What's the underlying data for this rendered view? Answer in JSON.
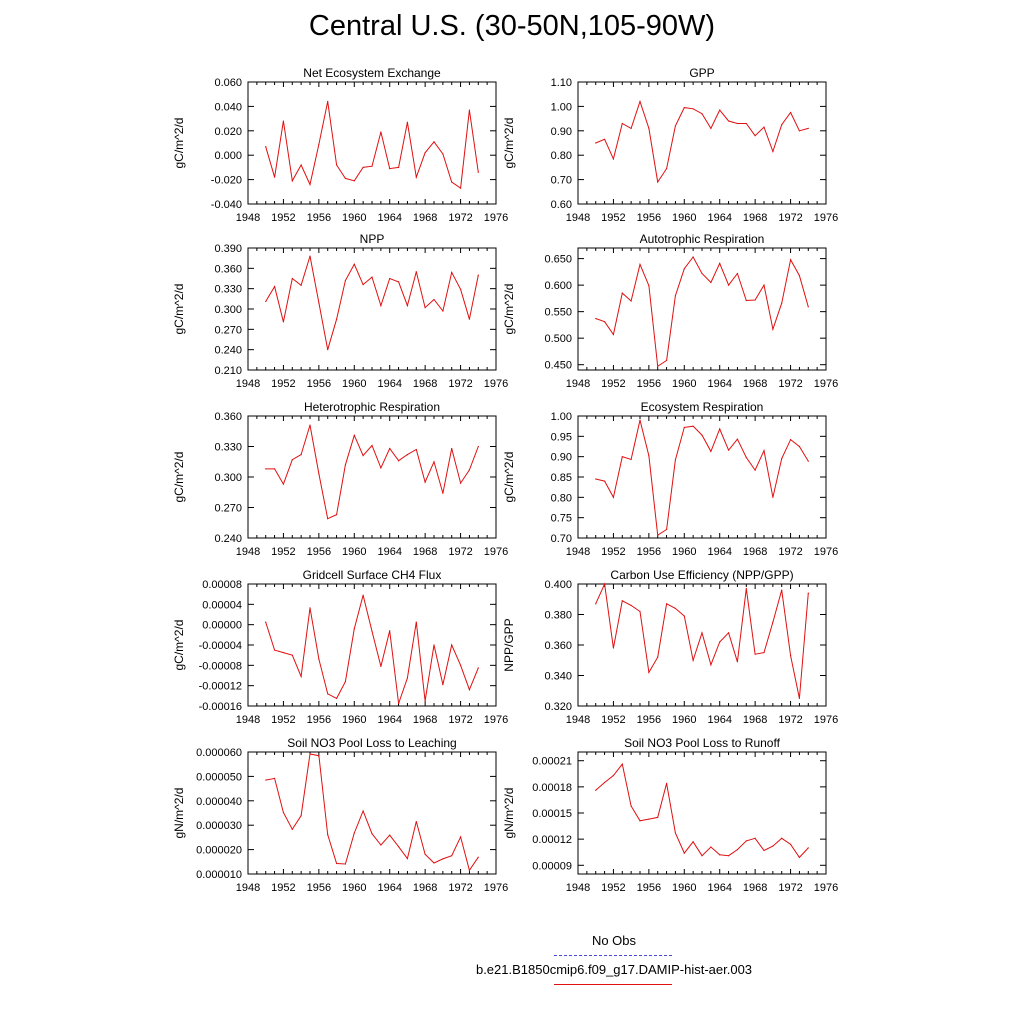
{
  "title": "Central U.S. (30-50N,105-90W)",
  "legend": {
    "obs_label": "No Obs",
    "obs_color": "#4a4ad8",
    "model_label": "b.e21.B1850cmip6.f09_g17.DAMIP-hist-aer.003",
    "model_color": "#e01010"
  },
  "chart_data": [
    {
      "type": "line",
      "title": "Net Ecosystem Exchange",
      "ylabel": "gC/m^2/d",
      "xlim": [
        1948,
        1976
      ],
      "xticks": [
        "1948",
        "1952",
        "1956",
        "1960",
        "1964",
        "1968",
        "1972",
        "1976"
      ],
      "ylim": [
        -0.04,
        0.06
      ],
      "yticks": [
        "-0.040",
        "-0.020",
        "0.000",
        "0.020",
        "0.040",
        "0.060"
      ],
      "x": [
        1950,
        1951,
        1952,
        1953,
        1954,
        1955,
        1956,
        1957,
        1958,
        1959,
        1960,
        1961,
        1962,
        1963,
        1964,
        1965,
        1966,
        1967,
        1968,
        1969,
        1970,
        1971,
        1972,
        1973,
        1974
      ],
      "values": [
        0.007,
        -0.018,
        0.028,
        -0.021,
        -0.008,
        -0.024,
        0.009,
        0.044,
        -0.008,
        -0.019,
        -0.021,
        -0.01,
        -0.009,
        0.019,
        -0.011,
        -0.01,
        0.027,
        -0.018,
        0.002,
        0.011,
        0.001,
        -0.022,
        -0.027,
        0.037,
        -0.014
      ]
    },
    {
      "type": "line",
      "title": "GPP",
      "ylabel": "gC/m^2/d",
      "xlim": [
        1948,
        1976
      ],
      "xticks": [
        "1948",
        "1952",
        "1956",
        "1960",
        "1964",
        "1968",
        "1972",
        "1976"
      ],
      "ylim": [
        0.6,
        1.1
      ],
      "yticks": [
        "0.60",
        "0.70",
        "0.80",
        "0.90",
        "1.00",
        "1.10"
      ],
      "x": [
        1950,
        1951,
        1952,
        1953,
        1954,
        1955,
        1956,
        1957,
        1958,
        1959,
        1960,
        1961,
        1962,
        1963,
        1964,
        1965,
        1966,
        1967,
        1968,
        1969,
        1970,
        1971,
        1972,
        1973,
        1974
      ],
      "values": [
        0.85,
        0.865,
        0.785,
        0.93,
        0.91,
        1.02,
        0.91,
        0.69,
        0.745,
        0.92,
        0.995,
        0.99,
        0.97,
        0.91,
        0.985,
        0.94,
        0.93,
        0.93,
        0.88,
        0.915,
        0.815,
        0.925,
        0.975,
        0.9,
        0.91
      ]
    },
    {
      "type": "line",
      "title": "NPP",
      "ylabel": "gC/m^2/d",
      "xlim": [
        1948,
        1976
      ],
      "xticks": [
        "1948",
        "1952",
        "1956",
        "1960",
        "1964",
        "1968",
        "1972",
        "1976"
      ],
      "ylim": [
        0.21,
        0.39
      ],
      "yticks": [
        "0.210",
        "0.240",
        "0.270",
        "0.300",
        "0.330",
        "0.360",
        "0.390"
      ],
      "x": [
        1950,
        1951,
        1952,
        1953,
        1954,
        1955,
        1956,
        1957,
        1958,
        1959,
        1960,
        1961,
        1962,
        1963,
        1964,
        1965,
        1966,
        1967,
        1968,
        1969,
        1970,
        1971,
        1972,
        1973,
        1974
      ],
      "values": [
        0.311,
        0.333,
        0.281,
        0.345,
        0.335,
        0.378,
        0.309,
        0.24,
        0.285,
        0.342,
        0.366,
        0.336,
        0.347,
        0.305,
        0.345,
        0.34,
        0.305,
        0.355,
        0.302,
        0.314,
        0.297,
        0.354,
        0.329,
        0.285,
        0.35
      ]
    },
    {
      "type": "line",
      "title": "Autotrophic Respiration",
      "ylabel": "gC/m^2/d",
      "xlim": [
        1948,
        1976
      ],
      "xticks": [
        "1948",
        "1952",
        "1956",
        "1960",
        "1964",
        "1968",
        "1972",
        "1976"
      ],
      "ylim": [
        0.44,
        0.67
      ],
      "yticks": [
        "0.450",
        "0.500",
        "0.550",
        "0.600",
        "0.650"
      ],
      "x": [
        1950,
        1951,
        1952,
        1953,
        1954,
        1955,
        1956,
        1957,
        1958,
        1959,
        1960,
        1961,
        1962,
        1963,
        1964,
        1965,
        1966,
        1967,
        1968,
        1969,
        1970,
        1971,
        1972,
        1973,
        1974
      ],
      "values": [
        0.537,
        0.531,
        0.507,
        0.585,
        0.57,
        0.639,
        0.599,
        0.447,
        0.458,
        0.58,
        0.631,
        0.653,
        0.622,
        0.605,
        0.641,
        0.6,
        0.622,
        0.571,
        0.572,
        0.6,
        0.517,
        0.566,
        0.648,
        0.618,
        0.559
      ]
    },
    {
      "type": "line",
      "title": "Heterotrophic Respiration",
      "ylabel": "gC/m^2/d",
      "xlim": [
        1948,
        1976
      ],
      "xticks": [
        "1948",
        "1952",
        "1956",
        "1960",
        "1964",
        "1968",
        "1972",
        "1976"
      ],
      "ylim": [
        0.24,
        0.36
      ],
      "yticks": [
        "0.240",
        "0.270",
        "0.300",
        "0.330",
        "0.360"
      ],
      "x": [
        1950,
        1951,
        1952,
        1953,
        1954,
        1955,
        1956,
        1957,
        1958,
        1959,
        1960,
        1961,
        1962,
        1963,
        1964,
        1965,
        1966,
        1967,
        1968,
        1969,
        1970,
        1971,
        1972,
        1973,
        1974
      ],
      "values": [
        0.308,
        0.308,
        0.293,
        0.317,
        0.322,
        0.351,
        0.303,
        0.259,
        0.263,
        0.312,
        0.341,
        0.321,
        0.331,
        0.309,
        0.328,
        0.316,
        0.322,
        0.327,
        0.295,
        0.315,
        0.284,
        0.328,
        0.294,
        0.307,
        0.33
      ]
    },
    {
      "type": "line",
      "title": "Ecosystem Respiration",
      "ylabel": "gC/m^2/d",
      "xlim": [
        1948,
        1976
      ],
      "xticks": [
        "1948",
        "1952",
        "1956",
        "1960",
        "1964",
        "1968",
        "1972",
        "1976"
      ],
      "ylim": [
        0.7,
        1.0
      ],
      "yticks": [
        "0.70",
        "0.75",
        "0.80",
        "0.85",
        "0.90",
        "0.95",
        "1.00"
      ],
      "x": [
        1950,
        1951,
        1952,
        1953,
        1954,
        1955,
        1956,
        1957,
        1958,
        1959,
        1960,
        1961,
        1962,
        1963,
        1964,
        1965,
        1966,
        1967,
        1968,
        1969,
        1970,
        1971,
        1972,
        1973,
        1974
      ],
      "values": [
        0.845,
        0.84,
        0.8,
        0.9,
        0.893,
        0.99,
        0.902,
        0.707,
        0.721,
        0.892,
        0.972,
        0.975,
        0.953,
        0.913,
        0.968,
        0.916,
        0.943,
        0.898,
        0.867,
        0.915,
        0.8,
        0.895,
        0.942,
        0.925,
        0.889
      ]
    },
    {
      "type": "line",
      "title": "Gridcell Surface CH4 Flux",
      "ylabel": "gC/m^2/d",
      "xlim": [
        1948,
        1976
      ],
      "xticks": [
        "1948",
        "1952",
        "1956",
        "1960",
        "1964",
        "1968",
        "1972",
        "1976"
      ],
      "ylim": [
        -0.00016,
        8e-05
      ],
      "yticks": [
        "-0.00016",
        "-0.00012",
        "-0.00008",
        "-0.00004",
        "0.00000",
        "0.00004",
        "0.00008"
      ],
      "x": [
        1950,
        1951,
        1952,
        1953,
        1954,
        1955,
        1956,
        1957,
        1958,
        1959,
        1960,
        1961,
        1962,
        1963,
        1964,
        1965,
        1966,
        1967,
        1968,
        1969,
        1970,
        1971,
        1972,
        1973,
        1974
      ],
      "values": [
        5e-06,
        -5e-05,
        -5.5e-05,
        -6e-05,
        -0.000102,
        3.3e-05,
        -6.8e-05,
        -0.000136,
        -0.000145,
        -0.000112,
        -8e-06,
        5.8e-05,
        -1.3e-05,
        -8.2e-05,
        -1.2e-05,
        -0.000155,
        -0.000105,
        5e-06,
        -0.00015,
        -4e-05,
        -0.000118,
        -4e-05,
        -8e-05,
        -0.000128,
        -8.5e-05
      ]
    },
    {
      "type": "line",
      "title": "Carbon Use Efficiency (NPP/GPP)",
      "ylabel": "NPP/GPP",
      "xlim": [
        1948,
        1976
      ],
      "xticks": [
        "1948",
        "1952",
        "1956",
        "1960",
        "1964",
        "1968",
        "1972",
        "1976"
      ],
      "ylim": [
        0.32,
        0.4
      ],
      "yticks": [
        "0.320",
        "0.340",
        "0.360",
        "0.380",
        "0.400"
      ],
      "x": [
        1950,
        1951,
        1952,
        1953,
        1954,
        1955,
        1956,
        1957,
        1958,
        1959,
        1960,
        1961,
        1962,
        1963,
        1964,
        1965,
        1966,
        1967,
        1968,
        1969,
        1970,
        1971,
        1972,
        1973,
        1974
      ],
      "values": [
        0.387,
        0.4,
        0.358,
        0.389,
        0.386,
        0.382,
        0.342,
        0.352,
        0.387,
        0.384,
        0.379,
        0.35,
        0.368,
        0.347,
        0.362,
        0.368,
        0.349,
        0.397,
        0.354,
        0.355,
        0.375,
        0.396,
        0.353,
        0.325,
        0.394
      ]
    },
    {
      "type": "line",
      "title": "Soil NO3 Pool Loss to Leaching",
      "ylabel": "gN/m^2/d",
      "xlim": [
        1948,
        1976
      ],
      "xticks": [
        "1948",
        "1952",
        "1956",
        "1960",
        "1964",
        "1968",
        "1972",
        "1976"
      ],
      "ylim": [
        1e-05,
        6e-05
      ],
      "yticks": [
        "0.000010",
        "0.000020",
        "0.000030",
        "0.000040",
        "0.000050",
        "0.000060"
      ],
      "x": [
        1950,
        1951,
        1952,
        1953,
        1954,
        1955,
        1956,
        1957,
        1958,
        1959,
        1960,
        1961,
        1962,
        1963,
        1964,
        1965,
        1966,
        1967,
        1968,
        1969,
        1970,
        1971,
        1972,
        1973,
        1974
      ],
      "values": [
        4.85e-05,
        4.92e-05,
        3.52e-05,
        2.83e-05,
        3.39e-05,
        5.92e-05,
        5.85e-05,
        2.61e-05,
        1.43e-05,
        1.41e-05,
        2.68e-05,
        3.58e-05,
        2.65e-05,
        2.19e-05,
        2.59e-05,
        2.12e-05,
        1.63e-05,
        3.15e-05,
        1.81e-05,
        1.45e-05,
        1.62e-05,
        1.75e-05,
        2.52e-05,
        1.15e-05,
        1.69e-05
      ]
    },
    {
      "type": "line",
      "title": "Soil NO3 Pool Loss to Runoff",
      "ylabel": "gN/m^2/d",
      "xlim": [
        1948,
        1976
      ],
      "xticks": [
        "1948",
        "1952",
        "1956",
        "1960",
        "1964",
        "1968",
        "1972",
        "1976"
      ],
      "ylim": [
        8e-05,
        0.00022
      ],
      "yticks": [
        "0.00009",
        "0.00012",
        "0.00015",
        "0.00018",
        "0.00021"
      ],
      "x": [
        1950,
        1951,
        1952,
        1953,
        1954,
        1955,
        1956,
        1957,
        1958,
        1959,
        1960,
        1961,
        1962,
        1963,
        1964,
        1965,
        1966,
        1967,
        1968,
        1969,
        1970,
        1971,
        1972,
        1973,
        1974
      ],
      "values": [
        0.000176,
        0.000185,
        0.000193,
        0.000206,
        0.000158,
        0.000141,
        0.000143,
        0.000145,
        0.000184,
        0.000127,
        0.000104,
        0.000117,
        0.000101,
        0.000111,
        0.000102,
        0.000101,
        0.000108,
        0.000118,
        0.000121,
        0.000107,
        0.000112,
        0.000121,
        0.000114,
        9.9e-05,
        0.00011
      ]
    }
  ]
}
